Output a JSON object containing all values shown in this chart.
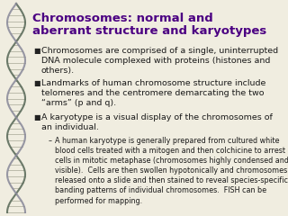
{
  "title_line1": "Chromosomes: normal and",
  "title_line2": "aberrant structure and karyotypes",
  "title_color": "#4B0082",
  "title_fontsize": 9.5,
  "background_color": "#F0EDE0",
  "bullet_color": "#1a1a1a",
  "bullet_fontsize": 6.8,
  "sub_bullet_fontsize": 5.8,
  "bullets": [
    "Chromosomes are comprised of a single, uninterrupted\nDNA molecule complexed with proteins (histones and\nothers).",
    "Landmarks of human chromosome structure include\ntelomeres and the centromere demarcating the two\n“arms” (p and q).",
    "A karyotype is a visual display of the chromosomes of\nan individual."
  ],
  "sub_bullet": "A human karyotype is generally prepared from cultured white\nblood cells treated with a mitogen and then colchicine to arrest\ncells in mitotic metaphase (chromosomes highly condensed and\nvisible).  Cells are then swollen hypotonically and chromosomes\nreleased onto a slide and then stained to reveal species-specific\nbanding patterns of individual chromosomes.  FISH can be\nperformed for mapping.",
  "helix_color1": "#556655",
  "helix_color2": "#888899",
  "rung_color": "#999988"
}
